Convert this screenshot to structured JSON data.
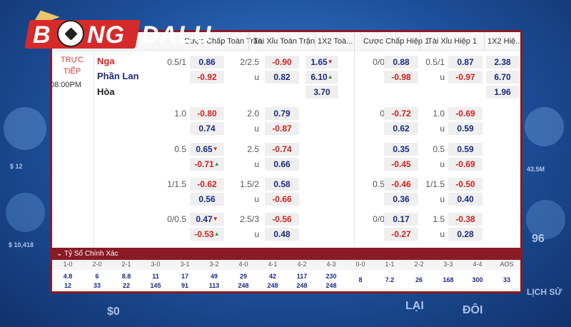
{
  "logo": {
    "part1": "B",
    "part2": "NG",
    "part3": "DALU"
  },
  "header": {
    "col1": "Cược Chấp Toàn Trận",
    "col2": "Tài Xỉu Toàn Trận",
    "col3": "1X2 Toà...",
    "col4": "Cược Chấp Hiệp 1",
    "col5": "Tài Xỉu Hiệp 1",
    "col6": "1X2 Hiệ..."
  },
  "match": {
    "status_line1": "TRỰC",
    "status_line2": "TIẾP",
    "time": "08:00PM",
    "home": "Nga",
    "away": "Phần Lan",
    "draw": "Hòa"
  },
  "rows": [
    {
      "h_lbl": "0.5/1",
      "h1": "0.86",
      "h2": "-0.92",
      "t_lbl": "2/2.5",
      "t1": "-0.90",
      "t2": "0.82",
      "t_u": "",
      "x1": "1.65",
      "x2": "6.10",
      "x3": "3.70",
      "hh_lbl": "0/0.5",
      "hh1": "0.88",
      "hh2": "-0.98",
      "ht_lbl": "0.5/1",
      "ht1": "0.87",
      "ht2": "-0.97",
      "hx1": "2.38",
      "hx2": "6.70",
      "hx3": "1.96"
    },
    {
      "h_lbl": "1.0",
      "h1": "-0.80",
      "h2": "0.74",
      "t_lbl": "2.0",
      "t1": "0.79",
      "t2": "-0.87",
      "hh_lbl": "0.5",
      "hh1": "-0.72",
      "hh2": "0.62",
      "ht_lbl": "1.0",
      "ht1": "-0.69",
      "ht2": "0.59"
    },
    {
      "h_lbl": "0.5",
      "h1": "0.65",
      "h2": "-0.71",
      "t_lbl": "2.5",
      "t1": "-0.74",
      "t2": "0.66",
      "hh_lbl": "0",
      "hh1": "0.35",
      "hh2": "-0.45",
      "ht_lbl": "0.5",
      "ht1": "0.59",
      "ht2": "-0.69"
    },
    {
      "h_lbl": "1/1.5",
      "h1": "-0.62",
      "h2": "0.56",
      "t_lbl": "1.5/2",
      "t1": "0.58",
      "t2": "-0.66",
      "hh_lbl": "0.5/1",
      "hh1": "-0.46",
      "hh2": "0.36",
      "ht_lbl": "1/1.5",
      "ht1": "-0.50",
      "ht2": "0.40"
    },
    {
      "h_lbl": "0/0.5",
      "h1": "0.47",
      "h2": "-0.53",
      "t_lbl": "2.5/3",
      "t1": "-0.56",
      "t2": "0.48",
      "hh_lbl": "0/0.5",
      "hh1": "0.17",
      "hh2": "-0.27",
      "ht_lbl": "1.5",
      "ht1": "-0.38",
      "ht2": "0.28"
    }
  ],
  "under_label": "u",
  "exact_score": {
    "title": "Tỷ Số Chính Xác",
    "scores": [
      "1-0",
      "2-0",
      "2-1",
      "3-0",
      "3-1",
      "3-2",
      "4-0",
      "4-1",
      "4-2",
      "4-3",
      "0-0",
      "1-1",
      "2-2",
      "3-3",
      "4-4",
      "AOS"
    ],
    "top": [
      "4.8",
      "6",
      "8.8",
      "11",
      "17",
      "49",
      "29",
      "42",
      "117",
      "230",
      "8",
      "7.2",
      "26",
      "168",
      "300",
      "33"
    ],
    "bottom": [
      "12",
      "33",
      "22",
      "145",
      "91",
      "113",
      "248",
      "248",
      "248",
      "248",
      "",
      "",
      "",
      "",
      "",
      ""
    ]
  },
  "side": {
    "left1": "$ 12",
    "left2": "$ 10,418",
    "right1": "43.5M",
    "right2": "96",
    "bottom1": "$0",
    "bottom2": "LẠI",
    "bottom3": "ĐÔI",
    "bottom4": "LỊCH SỬ"
  }
}
